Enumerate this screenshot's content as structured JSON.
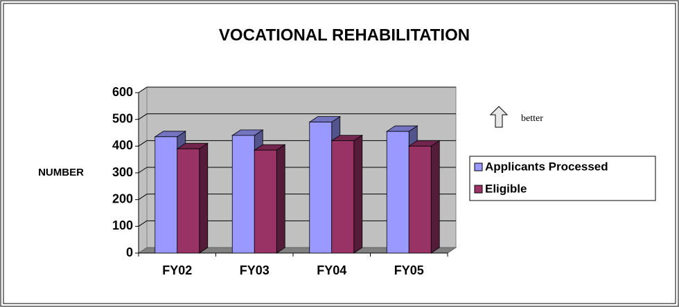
{
  "chart_data": {
    "type": "bar",
    "title": "VOCATIONAL REHABILITATION",
    "ylabel": "NUMBER",
    "annotation": "better",
    "categories": [
      "FY02",
      "FY03",
      "FY04",
      "FY05"
    ],
    "series": [
      {
        "name": "Applicants Processed",
        "color": "#9999ff",
        "values": [
          435,
          440,
          490,
          455
        ]
      },
      {
        "name": "Eligible",
        "color": "#993366",
        "values": [
          390,
          385,
          420,
          400
        ]
      }
    ],
    "ylim": [
      0,
      600
    ],
    "yticks": [
      0,
      100,
      200,
      300,
      400,
      500,
      600
    ],
    "grid": true,
    "legend": "right"
  }
}
